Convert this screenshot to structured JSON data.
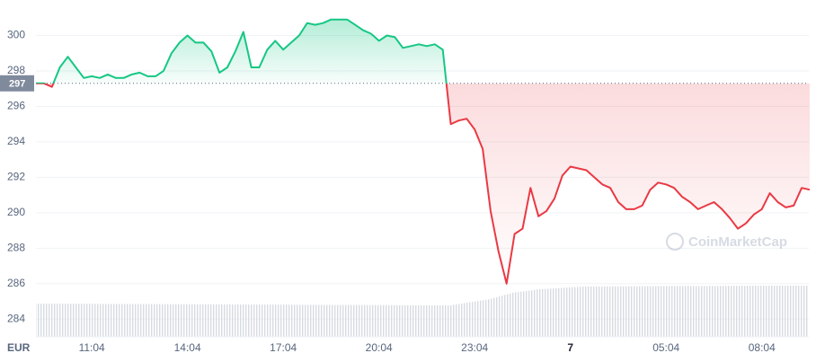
{
  "chart_data": {
    "type": "line",
    "watermark": "CoinMarketCap",
    "x_axis_label": "EUR",
    "categories": [
      null,
      null,
      null,
      null,
      null,
      null,
      null,
      "11:04",
      null,
      null,
      null,
      null,
      null,
      null,
      null,
      null,
      null,
      null,
      null,
      "14:04",
      null,
      null,
      null,
      null,
      null,
      null,
      null,
      null,
      null,
      null,
      null,
      "17:04",
      null,
      null,
      null,
      null,
      null,
      null,
      null,
      null,
      null,
      null,
      null,
      "20:04",
      null,
      null,
      null,
      null,
      null,
      null,
      null,
      null,
      null,
      null,
      null,
      "23:04",
      null,
      null,
      null,
      null,
      null,
      null,
      null,
      null,
      null,
      null,
      null,
      "7",
      null,
      null,
      null,
      null,
      null,
      null,
      null,
      null,
      null,
      null,
      null,
      "05:04",
      null,
      null,
      null,
      null,
      null,
      null,
      null,
      null,
      null,
      null,
      null,
      "08:04",
      null,
      null,
      null,
      null,
      null,
      null
    ],
    "values": [
      297.3,
      297.3,
      297.1,
      298.2,
      298.8,
      298.2,
      297.6,
      297.7,
      297.6,
      297.8,
      297.6,
      297.6,
      297.8,
      297.9,
      297.7,
      297.7,
      298.0,
      299.0,
      299.6,
      300.0,
      299.6,
      299.6,
      299.1,
      297.9,
      298.2,
      299.1,
      300.2,
      298.2,
      298.2,
      299.2,
      299.7,
      299.2,
      299.6,
      300.0,
      300.7,
      300.6,
      300.7,
      300.9,
      300.9,
      300.9,
      300.6,
      300.3,
      300.1,
      299.7,
      300.0,
      299.9,
      299.3,
      299.4,
      299.5,
      299.4,
      299.5,
      299.2,
      295.0,
      295.2,
      295.3,
      294.7,
      293.6,
      290.1,
      287.8,
      286.0,
      288.8,
      289.1,
      291.4,
      289.8,
      290.1,
      290.8,
      292.1,
      292.6,
      292.5,
      292.4,
      292.0,
      291.6,
      291.4,
      290.6,
      290.2,
      290.2,
      290.4,
      291.3,
      291.7,
      291.6,
      291.4,
      290.9,
      290.6,
      290.2,
      290.4,
      290.6,
      290.2,
      289.7,
      289.1,
      289.4,
      289.9,
      290.2,
      291.1,
      290.6,
      290.3,
      290.4,
      291.4,
      291.3
    ],
    "reference": {
      "value": 297.3,
      "label": "297"
    },
    "up_color": "#16c784",
    "down_color": "#ea3943",
    "ylim": [
      283,
      302
    ],
    "yticks": [
      284,
      286,
      288,
      290,
      292,
      294,
      296,
      298,
      300
    ],
    "grid": true
  }
}
